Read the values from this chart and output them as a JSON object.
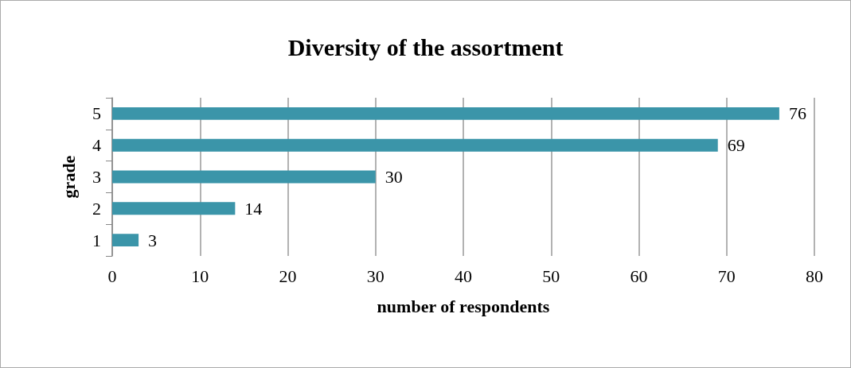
{
  "chart_data": {
    "type": "bar",
    "orientation": "horizontal",
    "title": "Diversity of the assortment",
    "xlabel": "number of respondents",
    "ylabel": "grade",
    "categories": [
      "5",
      "4",
      "3",
      "2",
      "1"
    ],
    "values": [
      76,
      69,
      30,
      14,
      3
    ],
    "color": "#3b95a9",
    "xlim": [
      0,
      80
    ],
    "xticks": [
      0,
      10,
      20,
      30,
      40,
      50,
      60,
      70,
      80
    ],
    "grid": "x",
    "data_labels": true
  }
}
